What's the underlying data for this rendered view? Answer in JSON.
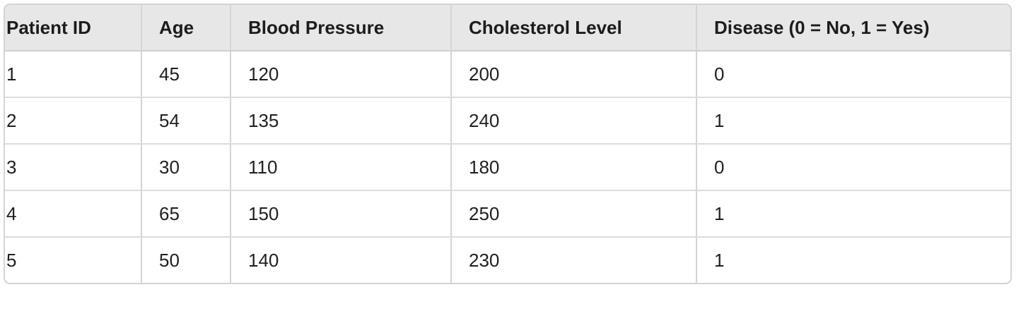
{
  "table": {
    "headers": [
      "Patient ID",
      "Age",
      "Blood Pressure",
      "Cholesterol Level",
      "Disease (0 = No, 1 = Yes)"
    ],
    "rows": [
      [
        "1",
        "45",
        "120",
        "200",
        "0"
      ],
      [
        "2",
        "54",
        "135",
        "240",
        "1"
      ],
      [
        "3",
        "30",
        "110",
        "180",
        "0"
      ],
      [
        "4",
        "65",
        "150",
        "250",
        "1"
      ],
      [
        "5",
        "50",
        "140",
        "230",
        "1"
      ]
    ]
  }
}
